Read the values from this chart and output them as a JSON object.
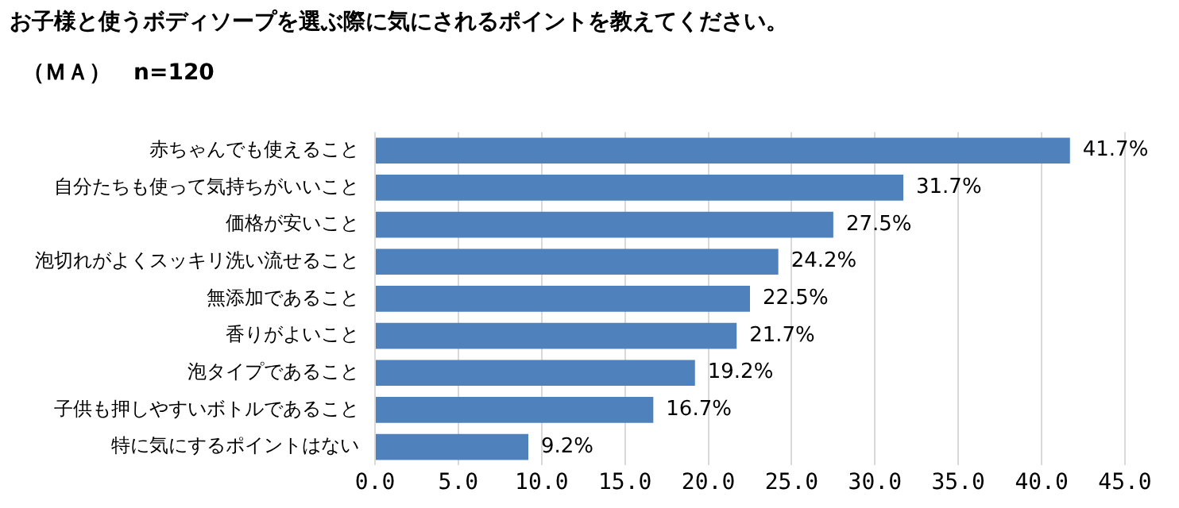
{
  "chart_data": {
    "type": "bar",
    "orientation": "horizontal",
    "title": "お子様と使うボディソープを選ぶ際に気にされるポイントを教えてください。",
    "subtitle": "（ＭＡ）　n=120",
    "categories": [
      "赤ちゃんでも使えること",
      "自分たちも使って気持ちがいいこと",
      "価格が安いこと",
      "泡切れがよくスッキリ洗い流せること",
      "無添加であること",
      "香りがよいこと",
      "泡タイプであること",
      "子供も押しやすいボトルであること",
      "特に気にするポイントはない"
    ],
    "values": [
      41.7,
      31.7,
      27.5,
      24.2,
      22.5,
      21.7,
      19.2,
      16.7,
      9.2
    ],
    "value_labels": [
      "41.7%",
      "31.7%",
      "27.5%",
      "24.2%",
      "22.5%",
      "21.7%",
      "19.2%",
      "16.7%",
      "9.2%"
    ],
    "color": "#4f81bd",
    "xlim": [
      0,
      45
    ],
    "xticks": [
      {
        "value": 0,
        "label": "0.0"
      },
      {
        "value": 5,
        "label": "5.0"
      },
      {
        "value": 10,
        "label": "10.0"
      },
      {
        "value": 15,
        "label": "15.0"
      },
      {
        "value": 20,
        "label": "20.0"
      },
      {
        "value": 25,
        "label": "25.0"
      },
      {
        "value": 30,
        "label": "30.0"
      },
      {
        "value": 35,
        "label": "35.0"
      },
      {
        "value": 40,
        "label": "40.0"
      },
      {
        "value": 45,
        "label": "45.0"
      }
    ],
    "grid": "x"
  }
}
